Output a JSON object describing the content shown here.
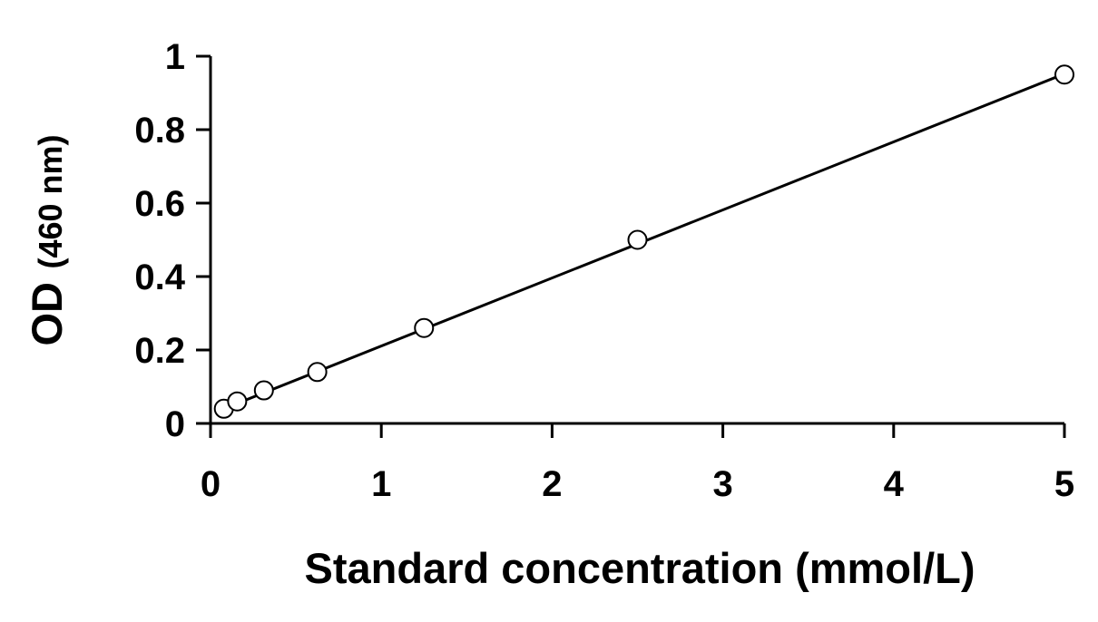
{
  "chart_data": {
    "type": "scatter",
    "title": "",
    "xlabel": "Standard concentration (mmol/L)",
    "ylabel_main": "OD",
    "ylabel_unit": "(460 nm)",
    "xlim": [
      0,
      5
    ],
    "ylim": [
      0,
      1
    ],
    "x_ticks": [
      0,
      1,
      2,
      3,
      4,
      5
    ],
    "y_ticks": [
      0,
      0.2,
      0.4,
      0.6,
      0.8,
      1
    ],
    "x_tick_labels": [
      "0",
      "1",
      "2",
      "3",
      "4",
      "5"
    ],
    "y_tick_labels": [
      "0",
      "0.2",
      "0.4",
      "0.6",
      "0.8",
      "1"
    ],
    "grid": false,
    "legend": "none",
    "series": [
      {
        "x": [
          0.078,
          0.156,
          0.3125,
          0.625,
          1.25,
          2.5,
          5
        ],
        "y": [
          0.04,
          0.06,
          0.09,
          0.14,
          0.26,
          0.5,
          0.95
        ],
        "marker": "open-circle",
        "color": "#000000"
      }
    ],
    "fit_line": {
      "x": [
        0.078,
        5
      ],
      "y": [
        0.04,
        0.952
      ],
      "color": "#000000"
    }
  }
}
